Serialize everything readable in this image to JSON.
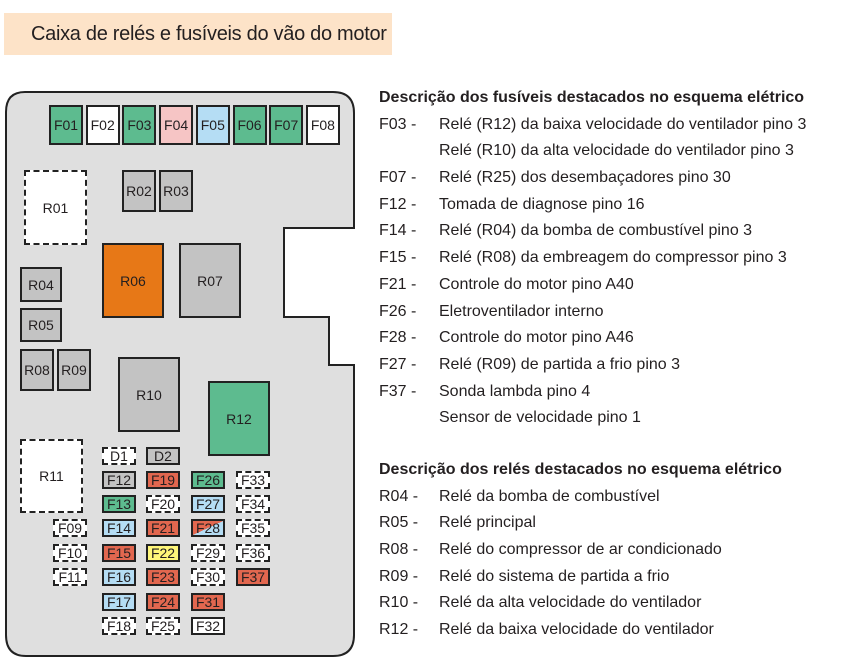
{
  "title": "Caixa de relés e fusíveis do vão do motor",
  "colors": {
    "green": "#5dbb8f",
    "red": "#e2674f",
    "blue": "#b5ddf4",
    "pink": "#f6c5c5",
    "gray": "#c3c3c3",
    "yellow": "#fff77a",
    "orange": "#e77817",
    "white": "#ffffff",
    "box_background": "#dfdfdf",
    "title_background": "#fde3c8"
  },
  "components": [
    {
      "id": "F01",
      "fill": "green"
    },
    {
      "id": "F02",
      "fill": "white"
    },
    {
      "id": "F03",
      "fill": "green"
    },
    {
      "id": "F04",
      "fill": "pink"
    },
    {
      "id": "F05",
      "fill": "blue"
    },
    {
      "id": "F06",
      "fill": "green"
    },
    {
      "id": "F07",
      "fill": "green"
    },
    {
      "id": "F08",
      "fill": "white"
    },
    {
      "id": "R01",
      "fill": "empty"
    },
    {
      "id": "R02",
      "fill": "gray"
    },
    {
      "id": "R03",
      "fill": "gray"
    },
    {
      "id": "R04",
      "fill": "gray"
    },
    {
      "id": "R05",
      "fill": "gray"
    },
    {
      "id": "R06",
      "fill": "orange"
    },
    {
      "id": "R07",
      "fill": "gray"
    },
    {
      "id": "R08",
      "fill": "gray"
    },
    {
      "id": "R09",
      "fill": "gray"
    },
    {
      "id": "R10",
      "fill": "gray"
    },
    {
      "id": "R11",
      "fill": "empty"
    },
    {
      "id": "R12",
      "fill": "green"
    },
    {
      "id": "D1",
      "fill": "empty"
    },
    {
      "id": "D2",
      "fill": "gray"
    },
    {
      "id": "F09",
      "fill": "empty"
    },
    {
      "id": "F10",
      "fill": "empty"
    },
    {
      "id": "F11",
      "fill": "empty"
    },
    {
      "id": "F12",
      "fill": "gray"
    },
    {
      "id": "F13",
      "fill": "green"
    },
    {
      "id": "F14",
      "fill": "blue"
    },
    {
      "id": "F15",
      "fill": "red"
    },
    {
      "id": "F16",
      "fill": "blue"
    },
    {
      "id": "F17",
      "fill": "blue"
    },
    {
      "id": "F18",
      "fill": "empty"
    },
    {
      "id": "F19",
      "fill": "red"
    },
    {
      "id": "F20",
      "fill": "empty"
    },
    {
      "id": "F21",
      "fill": "red"
    },
    {
      "id": "F22",
      "fill": "yellow"
    },
    {
      "id": "F23",
      "fill": "red"
    },
    {
      "id": "F24",
      "fill": "red"
    },
    {
      "id": "F25",
      "fill": "empty"
    },
    {
      "id": "F26",
      "fill": "green"
    },
    {
      "id": "F27",
      "fill": "blue"
    },
    {
      "id": "F28",
      "fill": "red/blue"
    },
    {
      "id": "F29",
      "fill": "empty"
    },
    {
      "id": "F30",
      "fill": "empty"
    },
    {
      "id": "F31",
      "fill": "red"
    },
    {
      "id": "F32",
      "fill": "white"
    },
    {
      "id": "F33",
      "fill": "empty"
    },
    {
      "id": "F34",
      "fill": "empty"
    },
    {
      "id": "F35",
      "fill": "empty"
    },
    {
      "id": "F36",
      "fill": "empty"
    },
    {
      "id": "F37",
      "fill": "red"
    }
  ],
  "fuses_section": {
    "heading": "Descrição dos fusíveis destacados no esquema elétrico",
    "rows": [
      {
        "code": "F03 -",
        "text": "Relé (R12) da baixa velocidade do ventilador pino 3"
      },
      {
        "code": "",
        "text": "Relé (R10) da alta velocidade do ventilador pino 3"
      },
      {
        "code": "F07 -",
        "text": "Relé (R25) dos desembaçadores pino 30"
      },
      {
        "code": "F12 -",
        "text": "Tomada de diagnose pino 16"
      },
      {
        "code": "F14 -",
        "text": "Relé (R04) da bomba de combustível pino 3"
      },
      {
        "code": "F15 -",
        "text": "Relé (R08) da embreagem do compressor pino 3"
      },
      {
        "code": "F21 -",
        "text": "Controle do motor pino A40"
      },
      {
        "code": "F26 -",
        "text": "Eletroventilador interno"
      },
      {
        "code": "F28 -",
        "text": "Controle do motor pino A46"
      },
      {
        "code": "F27 -",
        "text": "Relé (R09) de partida a frio pino 3"
      },
      {
        "code": "F37 -",
        "text": "Sonda lambda pino 4"
      },
      {
        "code": "",
        "text": "Sensor de velocidade pino 1"
      }
    ]
  },
  "relays_section": {
    "heading": "Descrição dos relés destacados no esquema elétrico",
    "rows": [
      {
        "code": "R04 -",
        "text": "Relé da bomba de combustível"
      },
      {
        "code": "R05 -",
        "text": "Relé principal"
      },
      {
        "code": "R08 -",
        "text": "Relé do compressor de ar condicionado"
      },
      {
        "code": "R09 -",
        "text": "Relé do sistema de partida a frio"
      },
      {
        "code": "R10 -",
        "text": "Relé da alta velocidade do ventilador"
      },
      {
        "code": "R12 -",
        "text": "Relé da baixa velocidade do ventilador"
      }
    ]
  }
}
